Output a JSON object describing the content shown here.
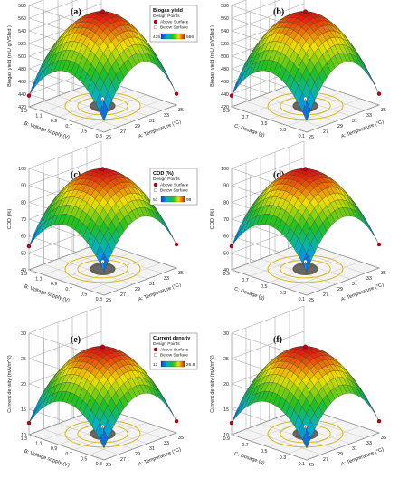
{
  "legend_labels": {
    "design_points": "Design Points",
    "above": "Above Surface",
    "below": "Below Surface"
  },
  "colors": {
    "above": "#c0001a",
    "below": "#ffffff",
    "grid": "#8a8a8a",
    "contour": "#e8a000"
  },
  "chart_data": [
    {
      "panel": "(a)",
      "type": "surface3d",
      "ylabel": "Biogas yield (mL/ g VSfed )",
      "xlabel": "A: Temperature (°C)",
      "zlabel": "B: Voltage supply (V)",
      "x_ticks": [
        "25",
        "27",
        "29",
        "31",
        "33",
        "35"
      ],
      "z_ticks": [
        "0.3",
        "0.5",
        "0.7",
        "0.9",
        "1.1",
        "1.3"
      ],
      "y_ticks": [
        "420",
        "440",
        "460",
        "480",
        "500",
        "520",
        "540",
        "560",
        "580"
      ],
      "ylim": [
        420,
        580
      ],
      "peak": 566,
      "edge_low": 435,
      "legend": {
        "title": "Biogas yield",
        "min": "435",
        "max": "566"
      }
    },
    {
      "panel": "(b)",
      "type": "surface3d",
      "ylabel": "Biogas yield (mL/ g VSfed )",
      "xlabel": "A: Temperature (°C)",
      "zlabel": "C: Dosage (g)",
      "x_ticks": [
        "25",
        "27",
        "29",
        "31",
        "33",
        "35"
      ],
      "z_ticks": [
        "0.1",
        "0.3",
        "0.5",
        "0.7",
        "0.9"
      ],
      "y_ticks": [
        "420",
        "440",
        "460",
        "480",
        "500",
        "520",
        "540",
        "560",
        "580"
      ],
      "ylim": [
        420,
        580
      ],
      "peak": 566,
      "edge_low": 435
    },
    {
      "panel": "(c)",
      "type": "surface3d",
      "ylabel": "COD (%)",
      "xlabel": "A: Temperature (°C)",
      "zlabel": "B: Voltage supply (V)",
      "x_ticks": [
        "25",
        "27",
        "29",
        "31",
        "33",
        "35"
      ],
      "z_ticks": [
        "0.3",
        "0.5",
        "0.7",
        "0.9",
        "1.1",
        "1.3"
      ],
      "y_ticks": [
        "40",
        "50",
        "60",
        "70",
        "80",
        "90",
        "100"
      ],
      "ylim": [
        40,
        100
      ],
      "peak": 98,
      "edge_low": 53,
      "legend": {
        "title": "COD (%)",
        "min": "53",
        "max": "98"
      }
    },
    {
      "panel": "(d)",
      "type": "surface3d",
      "ylabel": "COD (%)",
      "xlabel": "A: Temperature (°C)",
      "zlabel": "C: Dosage (g)",
      "x_ticks": [
        "25",
        "27",
        "29",
        "31",
        "33",
        "35"
      ],
      "z_ticks": [
        "0.1",
        "0.3",
        "0.5",
        "0.7",
        "0.9"
      ],
      "y_ticks": [
        "40",
        "50",
        "60",
        "70",
        "80",
        "90",
        "100"
      ],
      "ylim": [
        40,
        100
      ],
      "peak": 98,
      "edge_low": 53
    },
    {
      "panel": "(e)",
      "type": "surface3d",
      "ylabel": "Current density (mA/m^2)",
      "xlabel": "A: Temperature (°C)",
      "zlabel": "B: Voltage supply (V)",
      "x_ticks": [
        "25",
        "27",
        "29",
        "31",
        "33",
        "35"
      ],
      "z_ticks": [
        "0.3",
        "0.5",
        "0.7",
        "0.9",
        "1.1",
        "1.3"
      ],
      "y_ticks": [
        "10",
        "15",
        "20",
        "25",
        "30"
      ],
      "ylim": [
        10,
        30
      ],
      "peak": 26.8,
      "edge_low": 12,
      "legend": {
        "title": "Current density",
        "min": "12",
        "max": "26.8"
      }
    },
    {
      "panel": "(f)",
      "type": "surface3d",
      "ylabel": "Current density (mA/m^2)",
      "xlabel": "A: Temperature (°C)",
      "zlabel": "C: Dosage (g)",
      "x_ticks": [
        "25",
        "27",
        "29",
        "31",
        "33",
        "35"
      ],
      "z_ticks": [
        "0.1",
        "0.3",
        "0.5",
        "0.7",
        "0.9"
      ],
      "y_ticks": [
        "10",
        "15",
        "20",
        "25",
        "30"
      ],
      "ylim": [
        10,
        30
      ],
      "peak": 26.8,
      "edge_low": 12
    }
  ]
}
